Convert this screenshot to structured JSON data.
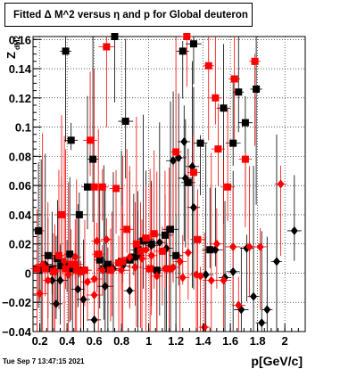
{
  "title": "Fitted Δ M^2 versus η and p for Global deuteron",
  "footer": "Tue Sep  7 13:47:15 2021",
  "chart_data": {
    "type": "scatter",
    "xlabel": "p[GeV/c]",
    "ylabel": "Z",
    "ylabel_sub": "dM2",
    "xlim": [
      0.15,
      2.15
    ],
    "ylim": [
      -0.04,
      0.162
    ],
    "x_ticks": [
      0.2,
      0.4,
      0.6,
      0.8,
      1,
      1.2,
      1.4,
      1.6,
      1.8,
      2
    ],
    "x_tick_labels": [
      "0.2",
      "0.4",
      "0.6",
      "0.8",
      "1",
      "1.2",
      "1.4",
      "1.6",
      "1.8",
      "2"
    ],
    "y_ticks": [
      -0.04,
      -0.02,
      0,
      0.02,
      0.04,
      0.06,
      0.08,
      0.1,
      0.12,
      0.14,
      0.16
    ],
    "y_tick_labels": [
      "−0.04",
      "−0.02",
      "0",
      "0.02",
      "0.04",
      "0.06",
      "0.08",
      "0.1",
      "0.12",
      "0.14",
      "0.16"
    ],
    "grid": true,
    "series": [
      {
        "color": "#000000",
        "marker": "square",
        "points": [
          [
            0.19,
            0.029
          ],
          [
            0.26,
            0.012
          ],
          [
            0.29,
            0.003
          ],
          [
            0.33,
            0.01
          ],
          [
            0.36,
            0.005
          ],
          [
            0.39,
            0.152
          ],
          [
            0.42,
            0.013
          ],
          [
            0.44,
            0.003
          ],
          [
            0.49,
            0.04
          ],
          [
            0.52,
            0.002
          ],
          [
            0.55,
            0.059
          ],
          [
            0.59,
            0.078
          ],
          [
            0.64,
            0.009
          ],
          [
            0.67,
            0.003
          ],
          [
            0.7,
            0.006
          ],
          [
            0.75,
            0.162
          ],
          [
            0.83,
            0.104
          ],
          [
            0.86,
            0.009
          ],
          [
            0.89,
            0.011
          ],
          [
            0.92,
            0.016
          ],
          [
            0.96,
            0.022
          ],
          [
            0.98,
            0.023
          ],
          [
            1.02,
            0.02
          ],
          [
            1.06,
            0.002
          ],
          [
            1.12,
            0.026
          ],
          [
            1.16,
            0.03
          ],
          [
            1.2,
            0.012
          ],
          [
            1.25,
            0.152
          ],
          [
            1.29,
            0.062
          ],
          [
            1.33,
            0.157
          ],
          [
            1.38,
            0.089
          ],
          [
            1.45,
            0.016
          ],
          [
            1.55,
            0.113
          ],
          [
            1.62,
            0.089
          ],
          [
            1.66,
            0.124
          ],
          [
            1.71,
            0.103
          ],
          [
            1.79,
            0.126
          ],
          [
            0.8,
            0.008
          ],
          [
            0.43,
            0.091
          ]
        ]
      },
      {
        "color": "#000000",
        "marker": "diamond",
        "points": [
          [
            0.21,
            0.002
          ],
          [
            0.29,
            -0.005
          ],
          [
            0.32,
            -0.021
          ],
          [
            0.35,
            -0.005
          ],
          [
            0.4,
            0.006
          ],
          [
            0.48,
            -0.011
          ],
          [
            0.52,
            -0.018
          ],
          [
            0.6,
            -0.032
          ],
          [
            0.68,
            -0.009
          ],
          [
            0.74,
            0.003
          ],
          [
            0.81,
            0.005
          ],
          [
            0.86,
            -0.012
          ],
          [
            0.92,
            0.012
          ],
          [
            1.02,
            0.019
          ],
          [
            1.08,
            0.021
          ],
          [
            1.13,
            0.017
          ],
          [
            1.18,
            0.077
          ],
          [
            1.22,
            0.079
          ],
          [
            1.27,
            0.065
          ],
          [
            1.32,
            0.073
          ],
          [
            1.42,
            -0.001
          ],
          [
            1.49,
            0.016
          ],
          [
            1.56,
            -0.003
          ],
          [
            1.62,
            0.001
          ],
          [
            1.68,
            -0.025
          ],
          [
            1.72,
            0.017
          ],
          [
            1.77,
            -0.016
          ],
          [
            1.83,
            -0.034
          ],
          [
            1.87,
            -0.025
          ],
          [
            1.94,
            0.008
          ],
          [
            2.07,
            0.029
          ],
          [
            1.26,
            0.09
          ],
          [
            1.33,
            0.045
          ],
          [
            0.24,
            0.006
          ]
        ]
      },
      {
        "color": "#ff0000",
        "marker": "square",
        "points": [
          [
            0.18,
            0.003
          ],
          [
            0.24,
            0.003
          ],
          [
            0.3,
            0.001
          ],
          [
            0.34,
            0.012
          ],
          [
            0.36,
            0.04
          ],
          [
            0.39,
            0.003
          ],
          [
            0.43,
            0.006
          ],
          [
            0.46,
            0.006
          ],
          [
            0.5,
            0.001
          ],
          [
            0.53,
            0.002
          ],
          [
            0.57,
            0.091
          ],
          [
            0.6,
            0.059
          ],
          [
            0.63,
            0.013
          ],
          [
            0.66,
            0.059
          ],
          [
            0.69,
            0.155
          ],
          [
            0.72,
            0.002
          ],
          [
            0.78,
            0.007
          ],
          [
            0.81,
            0.008
          ],
          [
            0.84,
            0.03
          ],
          [
            0.91,
            0.02
          ],
          [
            0.94,
            0.015
          ],
          [
            0.98,
            0.024
          ],
          [
            1.01,
            0.003
          ],
          [
            1.04,
            0.027
          ],
          [
            1.1,
            0.015
          ],
          [
            1.15,
            0.003
          ],
          [
            1.2,
            0.083
          ],
          [
            1.28,
            0.162
          ],
          [
            1.33,
            0.069
          ],
          [
            1.36,
            0.023
          ],
          [
            1.44,
            0.142
          ],
          [
            1.49,
            0.12
          ],
          [
            1.51,
            0.085
          ],
          [
            1.58,
            0.059
          ],
          [
            1.63,
            0.133
          ],
          [
            1.71,
            0.078
          ],
          [
            1.78,
            0.145
          ],
          [
            0.76,
            0.058
          ],
          [
            0.47,
            0.002
          ]
        ]
      },
      {
        "color": "#ff0000",
        "marker": "diamond",
        "points": [
          [
            0.2,
            -0.014
          ],
          [
            0.22,
            0.006
          ],
          [
            0.26,
            -0.005
          ],
          [
            0.31,
            0.002
          ],
          [
            0.34,
            0.012
          ],
          [
            0.38,
            0.008
          ],
          [
            0.41,
            -0.001
          ],
          [
            0.46,
            0.011
          ],
          [
            0.55,
            -0.006
          ],
          [
            0.6,
            -0.015
          ],
          [
            0.62,
            0.022
          ],
          [
            0.66,
            0.002
          ],
          [
            0.69,
            0.023
          ],
          [
            0.73,
            0.002
          ],
          [
            0.8,
            0.002
          ],
          [
            0.86,
            0.011
          ],
          [
            0.9,
            0.004
          ],
          [
            0.95,
            0.01
          ],
          [
            0.98,
            0.016
          ],
          [
            1.02,
            0.012
          ],
          [
            1.06,
            -0.002
          ],
          [
            1.12,
            0.003
          ],
          [
            1.18,
            0.004
          ],
          [
            1.25,
            -0.003
          ],
          [
            1.29,
            0.014
          ],
          [
            1.35,
            -0.001
          ],
          [
            1.38,
            -0.002
          ],
          [
            1.41,
            -0.037
          ],
          [
            1.46,
            -0.005
          ],
          [
            1.5,
            0.02
          ],
          [
            1.55,
            -0.005
          ],
          [
            1.62,
            0.018
          ],
          [
            1.66,
            -0.022
          ],
          [
            1.74,
            0.018
          ],
          [
            1.82,
            0.018
          ],
          [
            1.97,
            0.061
          ],
          [
            1.23,
            0.008
          ],
          [
            0.6,
            -0.004
          ]
        ]
      }
    ]
  }
}
